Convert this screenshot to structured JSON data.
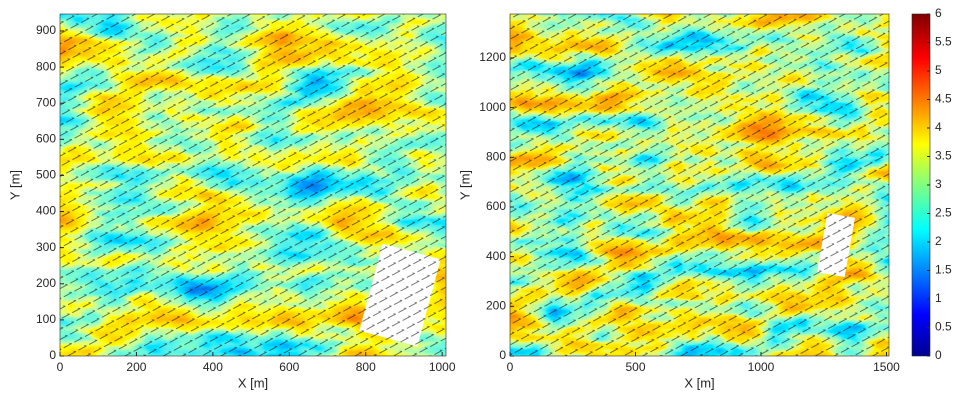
{
  "chart_data": [
    {
      "type": "heatmap",
      "xlabel": "X [m]",
      "ylabel": "Y [m]",
      "colormap": "jet",
      "xlim": [
        0,
        1010
      ],
      "ylim": [
        0,
        947
      ],
      "xticks": [
        0,
        200,
        400,
        600,
        800,
        1000
      ],
      "yticks": [
        0,
        100,
        200,
        300,
        400,
        500,
        600,
        700,
        800,
        900
      ]
    },
    {
      "type": "heatmap",
      "xlabel": "X [m]",
      "ylabel": "Y [m]",
      "colormap": "jet",
      "xlim": [
        0,
        1510
      ],
      "ylim": [
        0,
        1377
      ],
      "xticks": [
        0,
        500,
        1000,
        1500
      ],
      "yticks": [
        0,
        200,
        400,
        600,
        800,
        1000,
        1200
      ],
      "colorbar_lim": [
        0,
        6
      ],
      "colorbar_ticks": [
        0,
        0.5,
        1,
        1.5,
        2,
        2.5,
        3,
        3.5,
        4,
        4.5,
        5,
        5.5,
        6
      ]
    }
  ]
}
